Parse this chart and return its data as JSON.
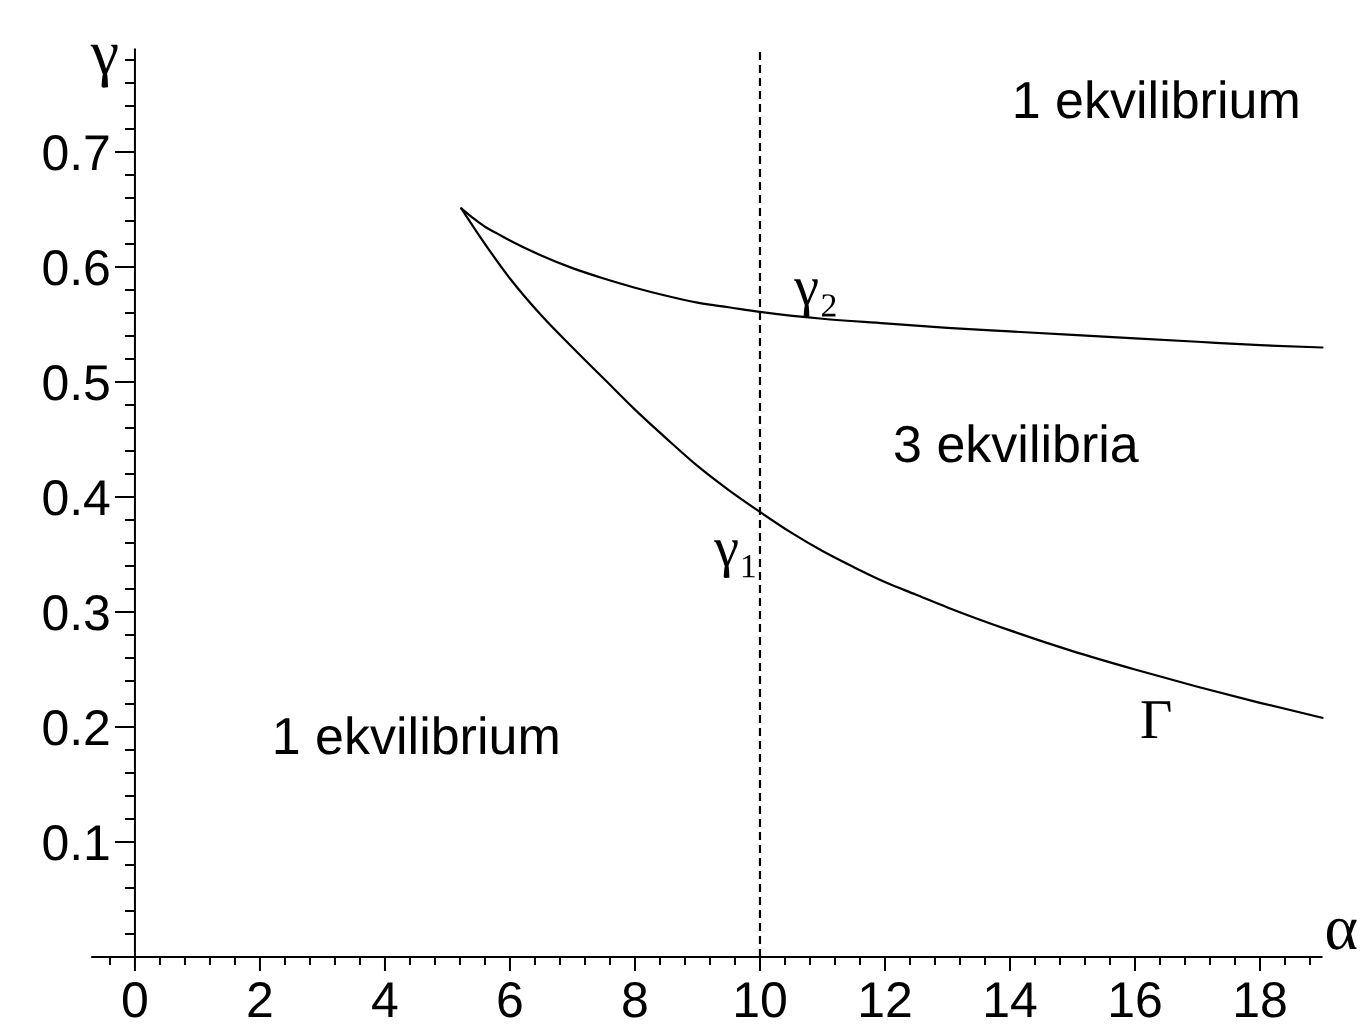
{
  "chart_data": {
    "type": "line",
    "xlabel": "α",
    "ylabel": "γ",
    "xlim": [
      -0.7,
      19
    ],
    "ylim": [
      0,
      0.79
    ],
    "xticks": [
      {
        "value": -0.4,
        "label": null
      },
      0,
      {
        "value": 0.4,
        "label": null
      },
      {
        "value": 0.8,
        "label": null
      },
      {
        "value": 1.2,
        "label": null
      },
      {
        "value": 1.6,
        "label": null
      },
      2,
      {
        "value": 2.4,
        "label": null
      },
      {
        "value": 2.8,
        "label": null
      },
      {
        "value": 3.2,
        "label": null
      },
      {
        "value": 3.6,
        "label": null
      },
      4,
      {
        "value": 4.4,
        "label": null
      },
      {
        "value": 4.8,
        "label": null
      },
      {
        "value": 5.2,
        "label": null
      },
      {
        "value": 5.6,
        "label": null
      },
      6,
      {
        "value": 6.4,
        "label": null
      },
      {
        "value": 6.8,
        "label": null
      },
      {
        "value": 7.2,
        "label": null
      },
      {
        "value": 7.6,
        "label": null
      },
      8,
      {
        "value": 8.4,
        "label": null
      },
      {
        "value": 8.8,
        "label": null
      },
      {
        "value": 9.2,
        "label": null
      },
      {
        "value": 9.6,
        "label": null
      },
      10,
      {
        "value": 10.4,
        "label": null
      },
      {
        "value": 10.8,
        "label": null
      },
      {
        "value": 11.2,
        "label": null
      },
      {
        "value": 11.6,
        "label": null
      },
      12,
      {
        "value": 12.4,
        "label": null
      },
      {
        "value": 12.8,
        "label": null
      },
      {
        "value": 13.2,
        "label": null
      },
      {
        "value": 13.6,
        "label": null
      },
      14,
      {
        "value": 14.4,
        "label": null
      },
      {
        "value": 14.8,
        "label": null
      },
      {
        "value": 15.2,
        "label": null
      },
      {
        "value": 15.6,
        "label": null
      },
      16,
      {
        "value": 16.4,
        "label": null
      },
      {
        "value": 16.8,
        "label": null
      },
      {
        "value": 17.2,
        "label": null
      },
      {
        "value": 17.6,
        "label": null
      },
      18,
      {
        "value": 18.4,
        "label": null
      },
      {
        "value": 18.8,
        "label": null
      }
    ],
    "yticks": [
      {
        "value": 0.02,
        "label": null
      },
      {
        "value": 0.04,
        "label": null
      },
      {
        "value": 0.06,
        "label": null
      },
      {
        "value": 0.08,
        "label": null
      },
      0.1,
      {
        "value": 0.12,
        "label": null
      },
      {
        "value": 0.14,
        "label": null
      },
      {
        "value": 0.16,
        "label": null
      },
      {
        "value": 0.18,
        "label": null
      },
      0.2,
      {
        "value": 0.22,
        "label": null
      },
      {
        "value": 0.24,
        "label": null
      },
      {
        "value": 0.26,
        "label": null
      },
      {
        "value": 0.28,
        "label": null
      },
      0.3,
      {
        "value": 0.32,
        "label": null
      },
      {
        "value": 0.34,
        "label": null
      },
      {
        "value": 0.36,
        "label": null
      },
      {
        "value": 0.38,
        "label": null
      },
      0.4,
      {
        "value": 0.42,
        "label": null
      },
      {
        "value": 0.44,
        "label": null
      },
      {
        "value": 0.46,
        "label": null
      },
      {
        "value": 0.48,
        "label": null
      },
      0.5,
      {
        "value": 0.52,
        "label": null
      },
      {
        "value": 0.54,
        "label": null
      },
      {
        "value": 0.56,
        "label": null
      },
      {
        "value": 0.58,
        "label": null
      },
      0.6,
      {
        "value": 0.62,
        "label": null
      },
      {
        "value": 0.64,
        "label": null
      },
      {
        "value": 0.66,
        "label": null
      },
      {
        "value": 0.68,
        "label": null
      },
      0.7,
      {
        "value": 0.72,
        "label": null
      },
      {
        "value": 0.74,
        "label": null
      },
      {
        "value": 0.76,
        "label": null
      },
      {
        "value": 0.78,
        "label": null
      }
    ],
    "line_style": "solid",
    "series": [
      {
        "color": "#000000",
        "x": [
          5.22,
          5.4,
          5.6,
          5.8,
          6,
          6.5,
          7,
          7.5,
          8,
          8.5,
          9,
          9.5,
          10,
          11,
          12,
          13,
          14,
          15,
          16,
          17,
          18,
          19
        ],
        "values": [
          0.651,
          0.643,
          0.635,
          0.629,
          0.623,
          0.61,
          0.599,
          0.59,
          0.582,
          0.575,
          0.569,
          0.565,
          0.561,
          0.555,
          0.551,
          0.547,
          0.544,
          0.541,
          0.538,
          0.535,
          0.532,
          0.53
        ]
      },
      {
        "color": "#000000",
        "x": [
          5.22,
          5.5,
          6,
          6.5,
          7,
          7.5,
          8,
          8.5,
          9,
          9.5,
          10,
          10.5,
          11,
          11.5,
          12,
          12.5,
          13,
          14,
          15,
          16,
          17,
          18,
          19
        ],
        "values": [
          0.651,
          0.628,
          0.59,
          0.558,
          0.53,
          0.503,
          0.476,
          0.451,
          0.427,
          0.406,
          0.387,
          0.369,
          0.353,
          0.339,
          0.326,
          0.315,
          0.304,
          0.284,
          0.266,
          0.25,
          0.235,
          0.221,
          0.208
        ]
      }
    ],
    "ref_lines": [
      {
        "axis": "x",
        "value": 10,
        "color": "#000000",
        "line_style": "dashed"
      }
    ],
    "annotations": [
      "1 ekvilibrium",
      "γ₂",
      "3 ekvilibria",
      "γ₁",
      "1 ekvilibrium",
      "Γ"
    ]
  }
}
